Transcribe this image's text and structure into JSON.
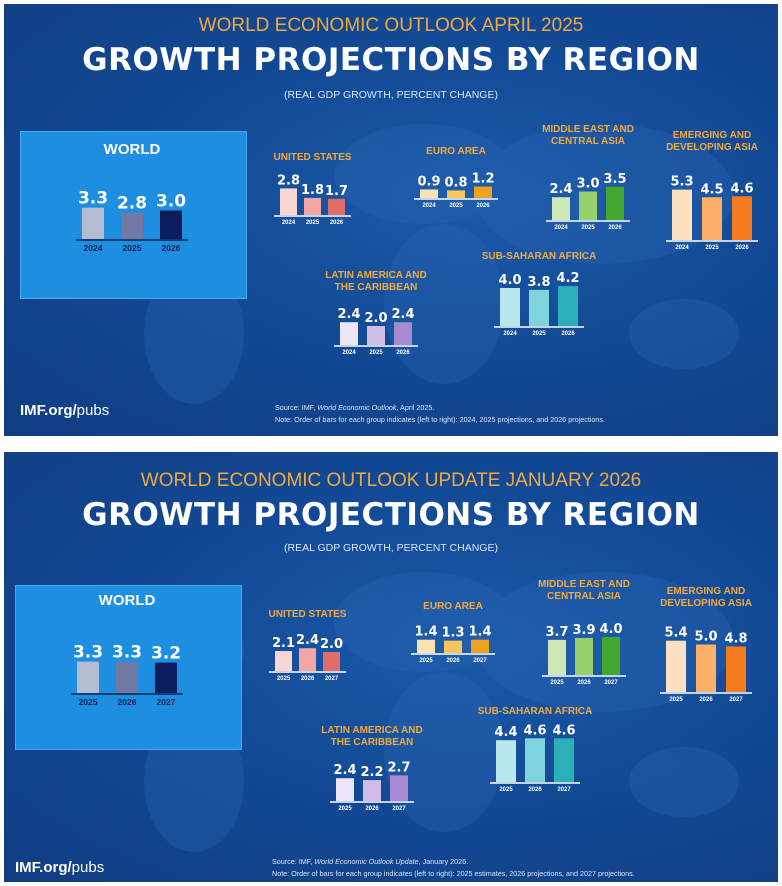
{
  "panels": [
    {
      "supertitle": "WORLD ECONOMIC OUTLOOK APRIL 2025",
      "title": "GROWTH PROJECTIONS BY REGION",
      "subtitle": "(REAL GDP GROWTH, PERCENT CHANGE)",
      "source_prefix": "Source:  IMF, ",
      "source_pub": "World Economic Outlook",
      "source_suffix": ", April 2025.",
      "note": "Note:  Order of bars for each group indicates (left to right): 2024, 2025 projections, and 2026 projections.",
      "imf_bold": "IMF.org/",
      "imf_rest": "pubs"
    },
    {
      "supertitle": "WORLD ECONOMIC OUTLOOK UPDATE JANUARY 2026",
      "title": "GROWTH PROJECTIONS BY REGION",
      "subtitle": "(REAL GDP GROWTH, PERCENT CHANGE)",
      "source_prefix": "Source:  IMF, ",
      "source_pub": "World Economic Outlook Update",
      "source_suffix": ", January 2026.",
      "note": "Note:  Order of bars for each group indicates (left to right): 2025 estimates, 2026 projections, and 2027 projections.",
      "imf_bold": "IMF.org/",
      "imf_rest": "pubs"
    }
  ],
  "colors": {
    "background": "#134a96",
    "accent_orange": "#f2a93b",
    "world_box": "#1e8fe0"
  },
  "chart_data": [
    {
      "type": "bar",
      "title": "GROWTH PROJECTIONS BY REGION",
      "subtitle": "(REAL GDP GROWTH, PERCENT CHANGE)",
      "categories": [
        "2024",
        "2025",
        "2026"
      ],
      "groups": [
        {
          "name": "WORLD",
          "values": [
            3.3,
            2.8,
            3.0
          ],
          "colors": [
            "#b3bdd1",
            "#6f79a4",
            "#0c1d5c"
          ]
        },
        {
          "name": "UNITED STATES",
          "values": [
            2.8,
            1.8,
            1.7
          ],
          "colors": [
            "#f9d6d6",
            "#f1a5a5",
            "#e06c6c"
          ]
        },
        {
          "name": "EURO AREA",
          "values": [
            0.9,
            0.8,
            1.2
          ],
          "colors": [
            "#fbe2b2",
            "#f6c55e",
            "#eea21e"
          ]
        },
        {
          "name": "MIDDLE EAST AND CENTRAL ASIA",
          "values": [
            2.4,
            3.0,
            3.5
          ],
          "colors": [
            "#cfe8b8",
            "#98d16c",
            "#45a82e"
          ]
        },
        {
          "name": "EMERGING AND DEVELOPING ASIA",
          "values": [
            5.3,
            4.5,
            4.6
          ],
          "colors": [
            "#fde0bf",
            "#fbb06a",
            "#f47c1e"
          ]
        },
        {
          "name": "LATIN AMERICA AND THE CARIBBEAN",
          "values": [
            2.4,
            2.0,
            2.4
          ],
          "colors": [
            "#ece6f6",
            "#cfbde6",
            "#a98ad2"
          ]
        },
        {
          "name": "SUB-SAHARAN AFRICA",
          "values": [
            4.0,
            3.8,
            4.2
          ],
          "colors": [
            "#b8e7ec",
            "#7fd3dc",
            "#2bb0b8"
          ]
        }
      ]
    },
    {
      "type": "bar",
      "title": "GROWTH PROJECTIONS BY REGION",
      "subtitle": "(REAL GDP GROWTH, PERCENT CHANGE)",
      "categories": [
        "2025",
        "2026",
        "2027"
      ],
      "groups": [
        {
          "name": "WORLD",
          "values": [
            3.3,
            3.3,
            3.2
          ],
          "colors": [
            "#b3bdd1",
            "#6f79a4",
            "#0c1d5c"
          ]
        },
        {
          "name": "UNITED STATES",
          "values": [
            2.1,
            2.4,
            2.0
          ],
          "colors": [
            "#f9d6d6",
            "#f1a5a5",
            "#e06c6c"
          ]
        },
        {
          "name": "EURO AREA",
          "values": [
            1.4,
            1.3,
            1.4
          ],
          "colors": [
            "#fbe2b2",
            "#f6c55e",
            "#eea21e"
          ]
        },
        {
          "name": "MIDDLE EAST AND CENTRAL ASIA",
          "values": [
            3.7,
            3.9,
            4.0
          ],
          "colors": [
            "#cfe8b8",
            "#98d16c",
            "#45a82e"
          ]
        },
        {
          "name": "EMERGING AND DEVELOPING ASIA",
          "values": [
            5.4,
            5.0,
            4.8
          ],
          "colors": [
            "#fde0bf",
            "#fbb06a",
            "#f47c1e"
          ]
        },
        {
          "name": "LATIN AMERICA AND THE CARIBBEAN",
          "values": [
            2.4,
            2.2,
            2.7
          ],
          "colors": [
            "#ece6f6",
            "#cfbde6",
            "#a98ad2"
          ]
        },
        {
          "name": "SUB-SAHARAN AFRICA",
          "values": [
            4.4,
            4.6,
            4.6
          ],
          "colors": [
            "#b8e7ec",
            "#7fd3dc",
            "#2bb0b8"
          ]
        }
      ]
    }
  ]
}
